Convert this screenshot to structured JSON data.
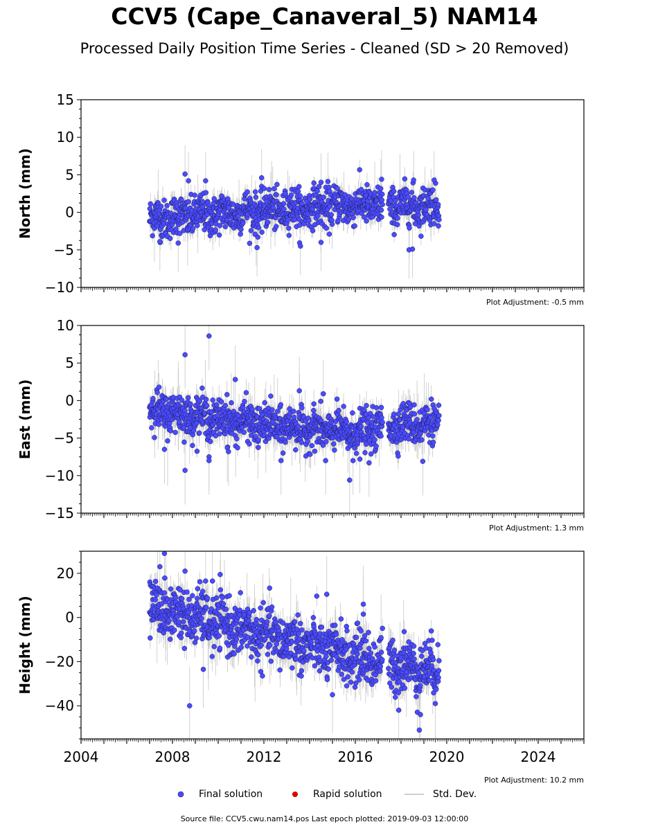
{
  "title": "CCV5 (Cape_Canaveral_5) NAM14",
  "subtitle": "Processed Daily Position Time Series - Cleaned (SD > 20 Removed)",
  "source_line": "Source file: CCV5.cwu.nam14.pos  Last epoch plotted: 2019-09-03 12:00:00",
  "colors": {
    "final": "#4b4bff",
    "final_edge": "#1a1a55",
    "rapid": "#dd0000",
    "stddev": "#bdbdbd"
  },
  "legend": [
    {
      "label": "Final solution",
      "marker": "circle",
      "color": "#4b4bff"
    },
    {
      "label": "Rapid solution",
      "marker": "circle",
      "color": "#dd0000"
    },
    {
      "label": "Std. Dev.",
      "marker": "line",
      "color": "#bdbdbd"
    }
  ],
  "chart_data": [
    {
      "type": "scatter",
      "ylabel": "North (mm)",
      "xlim": [
        2004,
        2026
      ],
      "ylim": [
        -10,
        15
      ],
      "yticks": [
        -10,
        -5,
        0,
        5,
        10,
        15
      ],
      "yticklabels": [
        "−10",
        "−5",
        "0",
        "5",
        "10",
        "15"
      ],
      "xticks": [
        2004,
        2008,
        2012,
        2016,
        2020,
        2024
      ],
      "xticklabels": [
        "",
        "",
        "",
        "",
        "",
        ""
      ],
      "adjustment": "Plot Adjustment: -0.5 mm",
      "data_range": [
        2007.0,
        2019.67
      ],
      "gaps": [
        [
          2017.2,
          2017.45
        ]
      ],
      "trend": [
        [
          2007.0,
          -0.8
        ],
        [
          2012.0,
          0.2
        ],
        [
          2016.0,
          1.0
        ],
        [
          2019.67,
          0.8
        ]
      ],
      "scatter_sd": 1.3,
      "err_half": 1.1,
      "outliers": [
        {
          "x": 2008.55,
          "y": 5.1
        },
        {
          "x": 2008.7,
          "y": 4.2
        },
        {
          "x": 2009.45,
          "y": 4.2
        },
        {
          "x": 2011.9,
          "y": 4.6
        },
        {
          "x": 2014.5,
          "y": 4.0
        },
        {
          "x": 2014.8,
          "y": 4.1
        },
        {
          "x": 2017.15,
          "y": 4.4
        },
        {
          "x": 2018.55,
          "y": 4.3
        },
        {
          "x": 2019.45,
          "y": 4.3
        },
        {
          "x": 2011.7,
          "y": -4.7
        },
        {
          "x": 2013.6,
          "y": -4.5
        },
        {
          "x": 2014.5,
          "y": -4.0
        },
        {
          "x": 2018.35,
          "y": -5.0
        },
        {
          "x": 2018.5,
          "y": -4.9
        },
        {
          "x": 2008.25,
          "y": -4.1
        },
        {
          "x": 2007.45,
          "y": -3.9
        }
      ]
    },
    {
      "type": "scatter",
      "ylabel": "East (mm)",
      "xlim": [
        2004,
        2026
      ],
      "ylim": [
        -15,
        10
      ],
      "yticks": [
        -15,
        -10,
        -5,
        0,
        5,
        10
      ],
      "yticklabels": [
        "−15",
        "−10",
        "−5",
        "0",
        "5",
        "10"
      ],
      "xticks": [
        2004,
        2008,
        2012,
        2016,
        2020,
        2024
      ],
      "xticklabels": [
        "",
        "",
        "",
        "",
        "",
        ""
      ],
      "adjustment": "Plot Adjustment: 1.3 mm",
      "data_range": [
        2007.0,
        2019.67
      ],
      "gaps": [
        [
          2017.2,
          2017.45
        ]
      ],
      "trend": [
        [
          2007.0,
          -1.2
        ],
        [
          2012.0,
          -3.3
        ],
        [
          2016.0,
          -4.3
        ],
        [
          2017.5,
          -3.2
        ],
        [
          2019.67,
          -3.0
        ]
      ],
      "scatter_sd": 1.3,
      "err_half": 1.3,
      "outliers": [
        {
          "x": 2008.55,
          "y": 6.1
        },
        {
          "x": 2009.6,
          "y": 8.6
        },
        {
          "x": 2010.75,
          "y": 2.8
        },
        {
          "x": 2008.55,
          "y": -9.3
        },
        {
          "x": 2009.6,
          "y": -7.5
        },
        {
          "x": 2009.6,
          "y": -8.0
        },
        {
          "x": 2010.4,
          "y": -6.3
        },
        {
          "x": 2010.45,
          "y": -6.8
        },
        {
          "x": 2007.65,
          "y": -6.5
        },
        {
          "x": 2015.75,
          "y": -10.6
        },
        {
          "x": 2015.9,
          "y": -8.0
        },
        {
          "x": 2016.2,
          "y": -7.8
        },
        {
          "x": 2016.6,
          "y": -8.3
        },
        {
          "x": 2018.95,
          "y": -8.1
        },
        {
          "x": 2012.75,
          "y": -8.0
        },
        {
          "x": 2014.7,
          "y": -8.0
        },
        {
          "x": 2013.55,
          "y": 1.3
        },
        {
          "x": 2014.6,
          "y": 0.9
        }
      ]
    },
    {
      "type": "scatter",
      "ylabel": "Height (mm)",
      "xlim": [
        2004,
        2026
      ],
      "ylim": [
        -55,
        30
      ],
      "yticks": [
        -40,
        -20,
        0,
        20
      ],
      "yticklabels": [
        "−40",
        "−20",
        "0",
        "20"
      ],
      "xticks": [
        2004,
        2008,
        2012,
        2016,
        2020,
        2024
      ],
      "xticklabels": [
        "2004",
        "2008",
        "2012",
        "2016",
        "2020",
        "2024"
      ],
      "adjustment": "Plot Adjustment: 10.2 mm",
      "data_range": [
        2007.0,
        2019.67
      ],
      "gaps": [
        [
          2017.2,
          2017.45
        ]
      ],
      "trend": [
        [
          2007.0,
          5.0
        ],
        [
          2012.0,
          -8.0
        ],
        [
          2016.0,
          -18.0
        ],
        [
          2019.67,
          -24.0
        ]
      ],
      "scatter_sd": 6.0,
      "err_half": 5.0,
      "outliers": [
        {
          "x": 2007.65,
          "y": 29.0
        },
        {
          "x": 2007.45,
          "y": 23.0
        },
        {
          "x": 2008.55,
          "y": 21.0
        },
        {
          "x": 2009.45,
          "y": 16.5
        },
        {
          "x": 2009.75,
          "y": 16.5
        },
        {
          "x": 2010.1,
          "y": 12.5
        },
        {
          "x": 2014.75,
          "y": 10.5
        },
        {
          "x": 2016.35,
          "y": 6.0
        },
        {
          "x": 2016.35,
          "y": 1.5
        },
        {
          "x": 2008.75,
          "y": -40.0
        },
        {
          "x": 2009.35,
          "y": -23.5
        },
        {
          "x": 2015.0,
          "y": -35.0
        },
        {
          "x": 2018.8,
          "y": -51.0
        },
        {
          "x": 2018.85,
          "y": -44.0
        },
        {
          "x": 2017.9,
          "y": -42.0
        },
        {
          "x": 2019.5,
          "y": -39.0
        }
      ]
    }
  ]
}
